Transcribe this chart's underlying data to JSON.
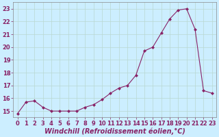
{
  "x": [
    0,
    1,
    2,
    3,
    4,
    5,
    6,
    7,
    8,
    9,
    10,
    11,
    12,
    13,
    14,
    15,
    16,
    17,
    18,
    19,
    20,
    21,
    22,
    23
  ],
  "y": [
    14.8,
    15.7,
    15.8,
    15.3,
    15.0,
    15.0,
    15.0,
    15.0,
    15.3,
    15.5,
    15.9,
    16.4,
    16.8,
    17.0,
    17.8,
    19.7,
    20.0,
    21.1,
    22.2,
    22.9,
    23.0,
    21.4,
    16.6,
    16.4
  ],
  "line_color": "#882266",
  "marker_color": "#882266",
  "bg_color": "#cceeff",
  "grid_color": "#aaddcc",
  "xlabel": "Windchill (Refroidissement éolien,°C)",
  "xlabel_fontsize": 7,
  "ylim": [
    14.5,
    23.5
  ],
  "xlim": [
    -0.5,
    23.5
  ],
  "yticks": [
    15,
    16,
    17,
    18,
    19,
    20,
    21,
    22,
    23
  ],
  "xticks": [
    0,
    1,
    2,
    3,
    4,
    5,
    6,
    7,
    8,
    9,
    10,
    11,
    12,
    13,
    14,
    15,
    16,
    17,
    18,
    19,
    20,
    21,
    22,
    23
  ],
  "tick_fontsize": 6,
  "label_color": "#882266"
}
